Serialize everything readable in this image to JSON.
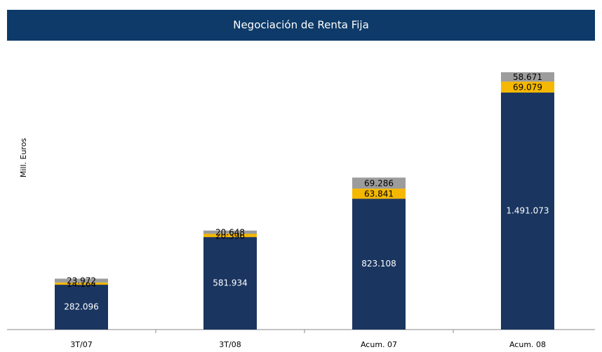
{
  "chart_data": {
    "type": "stacked_bar",
    "title": "Negociación de Renta Fija",
    "y_label": "Mill. Euros",
    "categories": [
      "3T/07",
      "3T/08",
      "Acum. 07",
      "Acum. 08"
    ],
    "series": [
      {
        "color": "#1a3560",
        "values": [
          282096,
          581934,
          823108,
          1491073
        ],
        "value_labels": [
          "282.096",
          "581.934",
          "823.108",
          "1.491.073"
        ]
      },
      {
        "color": "#f5b800",
        "values": [
          14164,
          20396,
          63841,
          69079
        ],
        "value_labels": [
          "14.164",
          "20.396",
          "63.841",
          "69.079"
        ]
      },
      {
        "color": "#9c9c9c",
        "values": [
          23972,
          20648,
          69286,
          58671
        ],
        "value_labels": [
          "23.972",
          "20.648",
          "69.286",
          "58.671"
        ]
      }
    ],
    "ylim": [
      0,
      1800000
    ]
  }
}
